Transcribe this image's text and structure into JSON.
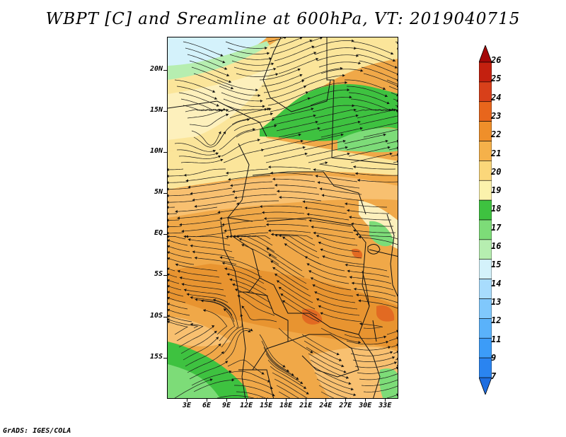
{
  "title": "WBPT [C] and Sreamline at 600hPa, VT: 2019040715",
  "credit": "GrADS: IGES/COLA",
  "map": {
    "lat_labels": [
      "20N",
      "15N",
      "10N",
      "5N",
      "EQ",
      "5S",
      "10S",
      "15S"
    ],
    "lat_values": [
      20,
      15,
      10,
      5,
      0,
      -5,
      -10,
      -15
    ],
    "lon_labels": [
      "3E",
      "6E",
      "9E",
      "12E",
      "15E",
      "18E",
      "21E",
      "24E",
      "27E",
      "30E",
      "33E"
    ],
    "lon_values": [
      3,
      6,
      9,
      12,
      15,
      18,
      21,
      24,
      27,
      30,
      33
    ],
    "lon_range": [
      0,
      35
    ],
    "lat_range": [
      -20,
      24
    ]
  },
  "colorbar": {
    "labels": [
      "7",
      "9",
      "11",
      "12",
      "13",
      "14",
      "15",
      "16",
      "17",
      "18",
      "19",
      "20",
      "21",
      "22",
      "23",
      "24",
      "25",
      "26"
    ],
    "colors": [
      "#1e6ee0",
      "#2a84f0",
      "#3c9cf8",
      "#5ab2fa",
      "#80c8fc",
      "#a8dcfd",
      "#d4f2fb",
      "#b6eeb0",
      "#7ddc78",
      "#3ec240",
      "#fbf2ac",
      "#fbd77a",
      "#f5b14a",
      "#ef8f2a",
      "#e8661c",
      "#d8401a",
      "#c4200f",
      "#a40808"
    ],
    "arrow_top_color": "#a40808",
    "arrow_bottom_color": "#1e6ee0"
  },
  "colors": {
    "orange_dark": "#e89430",
    "orange": "#f0a848",
    "orange_light": "#f8c070",
    "yellow": "#fbe59a",
    "yellow_pale": "#fdf0bc",
    "green": "#3ec240",
    "green_light": "#7ddc78",
    "green_pale": "#b6eeb0",
    "cyan_pale": "#d4f2fb",
    "red_spot": "#e26a22"
  }
}
